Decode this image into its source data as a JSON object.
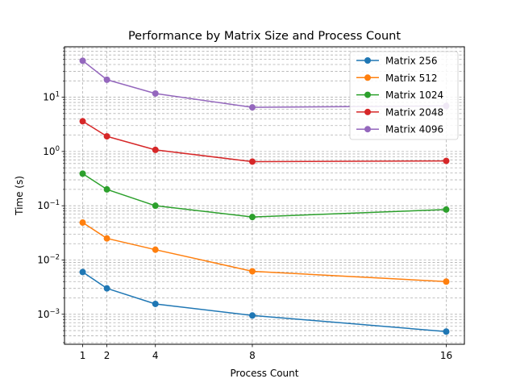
{
  "chart_data": {
    "type": "line",
    "title": "Performance by Matrix Size and Process Count",
    "xlabel": "Process Count",
    "ylabel": "Time (s)",
    "yscale": "log",
    "x": [
      1,
      2,
      4,
      8,
      16
    ],
    "xticks": [
      "1",
      "2",
      "4",
      "8",
      "16"
    ],
    "xlim": [
      0.25,
      16.75
    ],
    "ylim": [
      0.00028,
      85
    ],
    "yticks": [
      {
        "value": 0.001,
        "base": "10",
        "exp": "−3"
      },
      {
        "value": 0.01,
        "base": "10",
        "exp": "−2"
      },
      {
        "value": 0.1,
        "base": "10",
        "exp": "−1"
      },
      {
        "value": 1,
        "base": "10",
        "exp": "0"
      },
      {
        "value": 10,
        "base": "10",
        "exp": "1"
      }
    ],
    "grid": true,
    "legend_position": "top-right",
    "series": [
      {
        "name": "Matrix 256",
        "color": "#1f77b4",
        "values": [
          0.006,
          0.003,
          0.00155,
          0.00095,
          0.00048
        ]
      },
      {
        "name": "Matrix 512",
        "color": "#ff7f0e",
        "values": [
          0.049,
          0.025,
          0.0155,
          0.0062,
          0.004
        ]
      },
      {
        "name": "Matrix 1024",
        "color": "#2ca02c",
        "values": [
          0.39,
          0.2,
          0.1,
          0.062,
          0.085
        ]
      },
      {
        "name": "Matrix 2048",
        "color": "#d62728",
        "values": [
          3.6,
          1.9,
          1.07,
          0.65,
          0.67
        ]
      },
      {
        "name": "Matrix 4096",
        "color": "#9467bd",
        "values": [
          47,
          21,
          11.7,
          6.5,
          6.9
        ]
      }
    ]
  }
}
